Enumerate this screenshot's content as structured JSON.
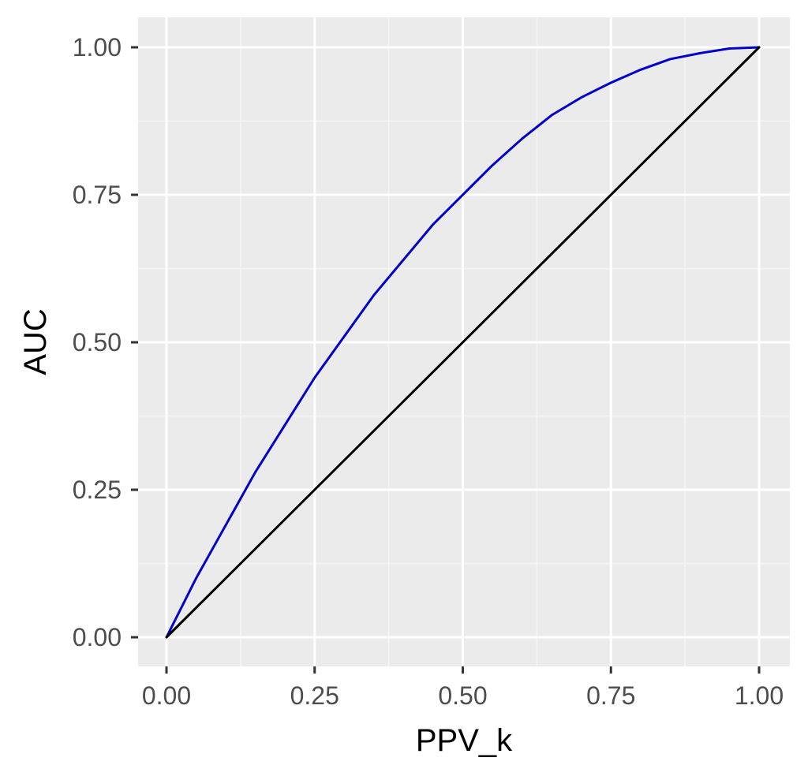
{
  "chart_data": {
    "type": "line",
    "title": "",
    "xlabel": "PPV_k",
    "ylabel": "AUC",
    "xlim": [
      0,
      1
    ],
    "ylim": [
      0,
      1
    ],
    "grid": true,
    "legend": "none",
    "x_ticks": [
      "0.00",
      "0.25",
      "0.50",
      "0.75",
      "1.00"
    ],
    "y_ticks": [
      "0.00",
      "0.25",
      "0.50",
      "0.75",
      "1.00"
    ],
    "series": [
      {
        "color": "#0000cd",
        "x": [
          0,
          0.05,
          0.1,
          0.15,
          0.2,
          0.25,
          0.3,
          0.35,
          0.4,
          0.45,
          0.5,
          0.55,
          0.6,
          0.65,
          0.7,
          0.75,
          0.8,
          0.85,
          0.9,
          0.95,
          1.0
        ],
        "y": [
          0,
          0.1,
          0.19,
          0.28,
          0.36,
          0.44,
          0.51,
          0.58,
          0.64,
          0.7,
          0.75,
          0.8,
          0.845,
          0.885,
          0.915,
          0.94,
          0.962,
          0.98,
          0.99,
          0.998,
          1.0
        ]
      },
      {
        "color": "#000000",
        "x": [
          0,
          1
        ],
        "y": [
          0,
          1
        ]
      }
    ],
    "colors": {
      "panel_background": "#ebebeb",
      "grid_major": "#ffffff",
      "grid_minor": "#f5f5f5",
      "tick_mark": "#333333"
    }
  }
}
